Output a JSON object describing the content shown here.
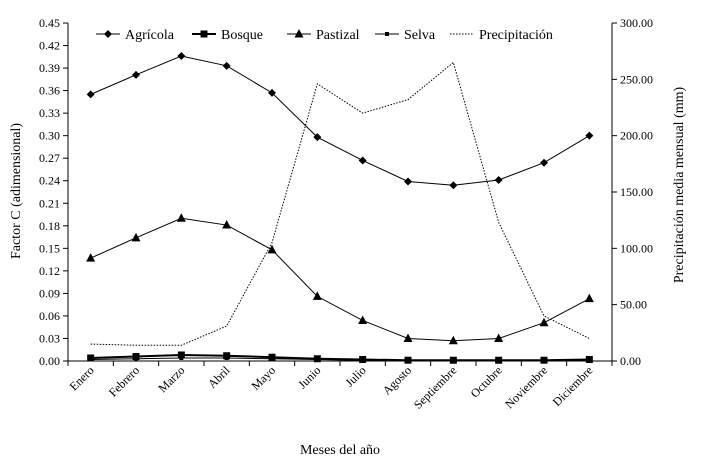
{
  "chart_data": {
    "type": "line",
    "categories": [
      "Enero",
      "Febrero",
      "Marzo",
      "Abril",
      "Mayo",
      "Junio",
      "Julio",
      "Agosto",
      "Septiembre",
      "Octubre",
      "Noviembre",
      "Diciembre"
    ],
    "xlabel": "Meses del año",
    "ylabel": "Factor C (adimensional)",
    "y2label": "Precipitación media mensual (mm)",
    "ylim": [
      0,
      0.45
    ],
    "y2lim": [
      0,
      300
    ],
    "yticks": [
      "0.00",
      "0.03",
      "0.06",
      "0.09",
      "0.12",
      "0.15",
      "0.18",
      "0.21",
      "0.24",
      "0.27",
      "0.30",
      "0.33",
      "0.36",
      "0.39",
      "0.42",
      "0.45"
    ],
    "y2ticks": [
      "0.00",
      "50.00",
      "100.00",
      "150.00",
      "200.00",
      "250.00",
      "300.00"
    ],
    "grid": false,
    "legend": "top",
    "series": [
      {
        "name": "Agrícola",
        "axis": "left",
        "marker": "diamond",
        "color": "#000000",
        "values": [
          0.355,
          0.381,
          0.406,
          0.393,
          0.357,
          0.298,
          0.267,
          0.239,
          0.234,
          0.241,
          0.264,
          0.3
        ]
      },
      {
        "name": "Bosque",
        "axis": "left",
        "marker": "square",
        "color": "#000000",
        "values": [
          0.004,
          0.006,
          0.008,
          0.007,
          0.005,
          0.003,
          0.002,
          0.001,
          0.001,
          0.001,
          0.001,
          0.002
        ]
      },
      {
        "name": "Pastizal",
        "axis": "left",
        "marker": "triangle",
        "color": "#000000",
        "values": [
          0.137,
          0.164,
          0.19,
          0.181,
          0.148,
          0.086,
          0.054,
          0.03,
          0.027,
          0.03,
          0.051,
          0.083
        ]
      },
      {
        "name": "Selva",
        "axis": "left",
        "marker": "small-square",
        "color": "#000000",
        "values": [
          0.002,
          0.003,
          0.004,
          0.004,
          0.003,
          0.002,
          0.001,
          0.0,
          0.0,
          0.0,
          0.0,
          0.001
        ]
      },
      {
        "name": "Precipitación",
        "axis": "right",
        "marker": "none",
        "dashed": true,
        "color": "#000000",
        "values": [
          15,
          14,
          14,
          31,
          105,
          246,
          220,
          232,
          265,
          123,
          40,
          20
        ]
      }
    ]
  }
}
